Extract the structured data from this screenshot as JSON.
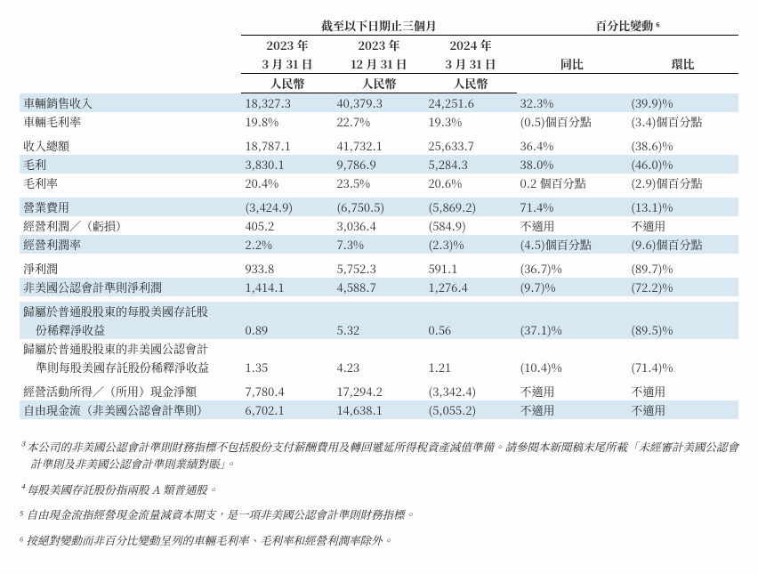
{
  "colors": {
    "stripe": "#d7e8f3",
    "text": "#2a2a2a",
    "rule": "#000000",
    "background": "#fdfdfd"
  },
  "fontsize": {
    "table": 13,
    "footnote": 12.5,
    "sup": 9
  },
  "header": {
    "period_group": "截至以下日期止三個月",
    "change_group": "百分比變動 ⁶",
    "col1_y": "2023 年",
    "col1_d": "3 月 31 日",
    "col2_y": "2023 年",
    "col2_d": "12 月 31 日",
    "col3_y": "2024 年",
    "col3_d": "3 月 31 日",
    "yoy": "同比",
    "qoq": "環比",
    "currency": "人民幣"
  },
  "rows": [
    {
      "stripe": true,
      "label": "車輛銷售收入",
      "c1": "18,327.3",
      "c2": "40,379.3",
      "c3": "24,251.6",
      "yoy": "32.3%",
      "qoq": "(39.9)%"
    },
    {
      "stripe": false,
      "label": "車輛毛利率",
      "c1": "19.8%",
      "c2": "22.7%",
      "c3": "19.3%",
      "yoy": "(0.5)個百分點",
      "qoq": "(3.4)個百分點"
    },
    {
      "spacer": true
    },
    {
      "stripe": false,
      "label": "收入總額",
      "c1": "18,787.1",
      "c2": "41,732.1",
      "c3": "25,633.7",
      "yoy": "36.4%",
      "qoq": "(38.6)%"
    },
    {
      "stripe": true,
      "label": "毛利",
      "c1": "3,830.1",
      "c2": "9,786.9",
      "c3": "5,284.3",
      "yoy": "38.0%",
      "qoq": "(46.0)%"
    },
    {
      "stripe": false,
      "label": "毛利率",
      "c1": "20.4%",
      "c2": "23.5%",
      "c3": "20.6%",
      "yoy": "0.2 個百分點",
      "qoq": "(2.9)個百分點"
    },
    {
      "spacer": true
    },
    {
      "stripe": true,
      "label": "營業費用",
      "c1": "(3,424.9)",
      "c2": "(6,750.5)",
      "c3": "(5,869.2)",
      "yoy": "71.4%",
      "qoq": "(13.1)%"
    },
    {
      "stripe": false,
      "label": "經營利潤／（虧損）",
      "c1": "405.2",
      "c2": "3,036.4",
      "c3": "(584.9)",
      "yoy": "不適用",
      "qoq": "不適用"
    },
    {
      "stripe": true,
      "label": "經營利潤率",
      "c1": "2.2%",
      "c2": "7.3%",
      "c3": "(2.3)%",
      "yoy": "(4.5)個百分點",
      "qoq": "(9.6)個百分點"
    },
    {
      "spacer": true
    },
    {
      "stripe": false,
      "label": "淨利潤",
      "c1": "933.8",
      "c2": "5,752.3",
      "c3": "591.1",
      "yoy": "(36.7)%",
      "qoq": "(89.7)%"
    },
    {
      "stripe": true,
      "label": "非美國公認會計準則淨利潤",
      "c1": "1,414.1",
      "c2": "4,588.7",
      "c3": "1,276.4",
      "yoy": "(9.7)%",
      "qoq": "(72.2)%"
    },
    {
      "spacer": true
    },
    {
      "stripe": true,
      "label": "歸屬於普通股股東的每股美國存託股",
      "wrap": true
    },
    {
      "stripe": true,
      "indent": true,
      "label": "份稀釋淨收益",
      "c1": "0.89",
      "c2": "5.32",
      "c3": "0.56",
      "yoy": "(37.1)%",
      "qoq": "(89.5)%"
    },
    {
      "stripe": false,
      "label": "歸屬於普通股股東的非美國公認會計",
      "wrap": true
    },
    {
      "stripe": false,
      "indent": true,
      "label": "準則每股美國存託股份稀釋淨收益",
      "c1": "1.35",
      "c2": "4.23",
      "c3": "1.21",
      "yoy": "(10.4)%",
      "qoq": "(71.4)%"
    },
    {
      "spacer": true
    },
    {
      "stripe": false,
      "label": "經營活動所得／（所用）現金淨額",
      "c1": "7,780.4",
      "c2": "17,294.2",
      "c3": "(3,342.4)",
      "yoy": "不適用",
      "qoq": "不適用"
    },
    {
      "stripe": true,
      "label": "自由現金流（非美國公認會計準則）",
      "c1": "6,702.1",
      "c2": "14,638.1",
      "c3": "(5,055.2)",
      "yoy": "不適用",
      "qoq": "不適用"
    }
  ],
  "footnotes": {
    "n3": "³  本公司的非美國公認會計準則財務指標不包括股份支付薪酬費用及轉回遞延所得稅資產減值準備。請參閱本新聞稿末尾所載「未經審計美國公認會計準則及非美國公認會計準則業績對賬」。",
    "n4": "⁴  每股美國存託股份指兩股 A 類普通股。",
    "n5": "⁵  自由現金流指經營現金流量減資本開支，是一項非美國公認會計準則財務指標。",
    "n6": "⁶  按絕對變動而非百分比變動呈列的車輛毛利率、毛利率和經營利潤率除外。"
  }
}
